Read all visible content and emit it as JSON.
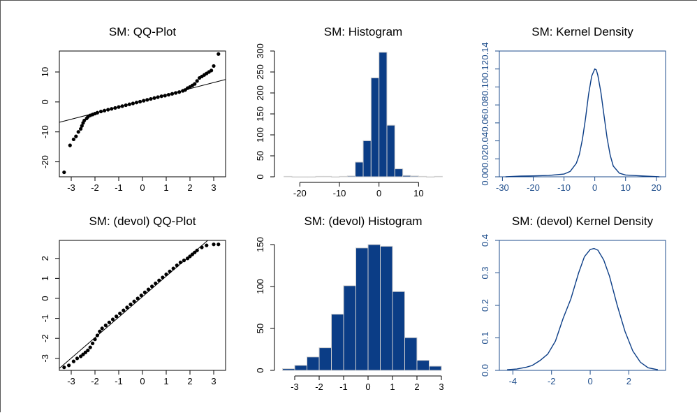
{
  "colors": {
    "axis_black": "#000000",
    "axis_blue": "#1f4e8c",
    "bar_fill": "#0b3d86",
    "bar_edge": "#d0d0d0",
    "points": "#000000",
    "line": "#000000",
    "density_line": "#0b3d86"
  },
  "chart_data": [
    {
      "type": "scatter",
      "title": "SM: QQ-Plot",
      "xlabel": "",
      "ylabel": "",
      "xlim": [
        -3.5,
        3.5
      ],
      "ylim": [
        -25,
        17
      ],
      "xticks": [
        -3,
        -2,
        -1,
        0,
        1,
        2,
        3
      ],
      "yticks": [
        -20,
        -10,
        0,
        10
      ],
      "grid": false,
      "reference_line": {
        "x": [
          -3.5,
          3.5
        ],
        "y": [
          -6.8,
          7.5
        ]
      },
      "points": {
        "x": [
          -3.3,
          -3.05,
          -2.9,
          -2.8,
          -2.7,
          -2.6,
          -2.55,
          -2.5,
          -2.45,
          -2.35,
          -2.3,
          -2.2,
          -2.1,
          -2.0,
          -1.9,
          -1.75,
          -1.6,
          -1.45,
          -1.3,
          -1.15,
          -1.0,
          -0.85,
          -0.7,
          -0.55,
          -0.4,
          -0.25,
          -0.1,
          0.05,
          0.2,
          0.35,
          0.5,
          0.65,
          0.8,
          0.95,
          1.1,
          1.25,
          1.4,
          1.55,
          1.7,
          1.8,
          1.9,
          2.0,
          2.1,
          2.2,
          2.3,
          2.4,
          2.5,
          2.6,
          2.7,
          2.8,
          2.9,
          3.0,
          3.2
        ],
        "y": [
          -23.5,
          -14.5,
          -12.5,
          -11.5,
          -10.0,
          -9.0,
          -8.0,
          -7.0,
          -6.2,
          -5.5,
          -5.0,
          -4.5,
          -4.2,
          -3.9,
          -3.6,
          -3.2,
          -2.9,
          -2.6,
          -2.3,
          -2.0,
          -1.7,
          -1.4,
          -1.1,
          -0.8,
          -0.5,
          -0.2,
          0.1,
          0.4,
          0.7,
          1.0,
          1.3,
          1.6,
          1.9,
          2.1,
          2.4,
          2.7,
          3.0,
          3.3,
          3.7,
          4.0,
          4.6,
          5.0,
          5.5,
          6.0,
          7.0,
          8.0,
          8.5,
          9.0,
          9.5,
          10.0,
          10.5,
          12.0,
          16.0
        ]
      }
    },
    {
      "type": "bar",
      "title": "SM: Histogram",
      "xlabel": "",
      "ylabel": "",
      "xlim": [
        -25,
        17
      ],
      "ylim": [
        0,
        300
      ],
      "xticks": [
        -20,
        -10,
        0,
        10
      ],
      "yticks": [
        0,
        50,
        100,
        150,
        200,
        250,
        300
      ],
      "bins": [
        [
          -24,
          -22
        ],
        [
          -22,
          -20
        ],
        [
          -20,
          -18
        ],
        [
          -18,
          -16
        ],
        [
          -16,
          -14
        ],
        [
          -14,
          -12
        ],
        [
          -12,
          -10
        ],
        [
          -10,
          -8
        ],
        [
          -8,
          -6
        ],
        [
          -6,
          -4
        ],
        [
          -4,
          -2
        ],
        [
          -2,
          0
        ],
        [
          0,
          2
        ],
        [
          2,
          4
        ],
        [
          4,
          6
        ],
        [
          6,
          8
        ],
        [
          8,
          10
        ],
        [
          10,
          12
        ],
        [
          12,
          14
        ],
        [
          14,
          16
        ]
      ],
      "values": [
        1,
        0,
        0,
        0,
        1,
        1,
        0,
        1,
        2,
        35,
        86,
        236,
        297,
        123,
        19,
        3,
        2,
        1,
        0,
        1
      ]
    },
    {
      "type": "line",
      "title": "SM: Kernel Density",
      "xlabel": "",
      "ylabel": "",
      "xlim": [
        -31,
        23
      ],
      "ylim": [
        0,
        0.14
      ],
      "xticks": [
        -30,
        -20,
        -10,
        0,
        10,
        20
      ],
      "yticks": [
        0.0,
        0.02,
        0.04,
        0.06,
        0.08,
        0.1,
        0.12,
        0.14
      ],
      "ytick_labels": [
        "0.00",
        "0.02",
        "0.04",
        "0.06",
        "0.08",
        "0.10",
        "0.12",
        "0.14"
      ],
      "x": [
        -29,
        -24,
        -20,
        -15,
        -10,
        -8,
        -6,
        -5,
        -4,
        -3,
        -2,
        -1,
        0,
        0.5,
        1,
        2,
        3,
        4,
        5,
        6,
        8,
        10,
        15,
        21
      ],
      "y": [
        0.0,
        0.0008,
        0.001,
        0.0015,
        0.003,
        0.006,
        0.015,
        0.025,
        0.042,
        0.065,
        0.092,
        0.112,
        0.12,
        0.119,
        0.113,
        0.094,
        0.068,
        0.043,
        0.024,
        0.012,
        0.004,
        0.002,
        0.001,
        0.0
      ]
    },
    {
      "type": "scatter",
      "title": "SM: (devol) QQ-Plot",
      "xlabel": "",
      "ylabel": "",
      "xlim": [
        -3.5,
        3.5
      ],
      "ylim": [
        -3.6,
        2.9
      ],
      "xticks": [
        -3,
        -2,
        -1,
        0,
        1,
        2,
        3
      ],
      "yticks": [
        -3,
        -2,
        -1,
        0,
        1,
        2
      ],
      "grid": false,
      "reference_line": {
        "x": [
          -3.5,
          2.75
        ],
        "y": [
          -3.5,
          2.9
        ]
      },
      "points": {
        "x": [
          -3.3,
          -3.1,
          -2.9,
          -2.75,
          -2.6,
          -2.5,
          -2.4,
          -2.3,
          -2.2,
          -2.1,
          -2.0,
          -1.9,
          -1.8,
          -1.7,
          -1.55,
          -1.4,
          -1.25,
          -1.1,
          -0.95,
          -0.8,
          -0.65,
          -0.5,
          -0.35,
          -0.2,
          -0.05,
          0.1,
          0.25,
          0.4,
          0.55,
          0.7,
          0.85,
          1.0,
          1.15,
          1.3,
          1.45,
          1.6,
          1.75,
          1.9,
          2.0,
          2.1,
          2.2,
          2.3,
          2.5,
          2.7,
          3.0,
          3.2
        ],
        "y": [
          -3.45,
          -3.35,
          -3.15,
          -3.0,
          -2.9,
          -2.8,
          -2.7,
          -2.6,
          -2.45,
          -2.25,
          -2.05,
          -1.85,
          -1.65,
          -1.5,
          -1.35,
          -1.2,
          -1.05,
          -0.9,
          -0.75,
          -0.6,
          -0.45,
          -0.3,
          -0.15,
          0.0,
          0.15,
          0.3,
          0.45,
          0.6,
          0.75,
          0.9,
          1.05,
          1.2,
          1.35,
          1.5,
          1.65,
          1.8,
          1.9,
          2.0,
          2.1,
          2.2,
          2.3,
          2.4,
          2.55,
          2.65,
          2.7,
          2.7
        ]
      }
    },
    {
      "type": "bar",
      "title": "SM: (devol) Histogram",
      "xlabel": "",
      "ylabel": "",
      "xlim": [
        -3.6,
        3.2
      ],
      "ylim": [
        0,
        155
      ],
      "xticks": [
        -3,
        -2,
        -1,
        0,
        1,
        2,
        3
      ],
      "yticks": [
        0,
        50,
        100,
        150
      ],
      "bins": [
        [
          -3.5,
          -3.0
        ],
        [
          -3.0,
          -2.5
        ],
        [
          -2.5,
          -2.0
        ],
        [
          -2.0,
          -1.5
        ],
        [
          -1.5,
          -1.0
        ],
        [
          -1.0,
          -0.5
        ],
        [
          -0.5,
          0.0
        ],
        [
          0.0,
          0.5
        ],
        [
          0.5,
          1.0
        ],
        [
          1.0,
          1.5
        ],
        [
          1.5,
          2.0
        ],
        [
          2.0,
          2.5
        ],
        [
          2.5,
          3.0
        ]
      ],
      "values": [
        2,
        6,
        16,
        27,
        67,
        101,
        146,
        150,
        148,
        94,
        39,
        12,
        5
      ]
    },
    {
      "type": "line",
      "title": "SM: (devol) Kernel Density",
      "xlabel": "",
      "ylabel": "",
      "xlim": [
        -4.7,
        3.9
      ],
      "ylim": [
        0,
        0.4
      ],
      "xticks": [
        -4,
        -2,
        0,
        2
      ],
      "yticks": [
        0.0,
        0.1,
        0.2,
        0.3,
        0.4
      ],
      "ytick_labels": [
        "0.0",
        "0.1",
        "0.2",
        "0.3",
        "0.4"
      ],
      "x": [
        -4.3,
        -3.8,
        -3.3,
        -3.0,
        -2.6,
        -2.2,
        -1.8,
        -1.4,
        -1.0,
        -0.6,
        -0.3,
        0.0,
        0.2,
        0.4,
        0.7,
        1.0,
        1.4,
        1.8,
        2.2,
        2.6,
        3.0,
        3.5
      ],
      "y": [
        0.002,
        0.004,
        0.01,
        0.015,
        0.03,
        0.05,
        0.09,
        0.16,
        0.22,
        0.3,
        0.35,
        0.372,
        0.375,
        0.37,
        0.34,
        0.29,
        0.2,
        0.12,
        0.06,
        0.025,
        0.008,
        0.002
      ]
    }
  ]
}
